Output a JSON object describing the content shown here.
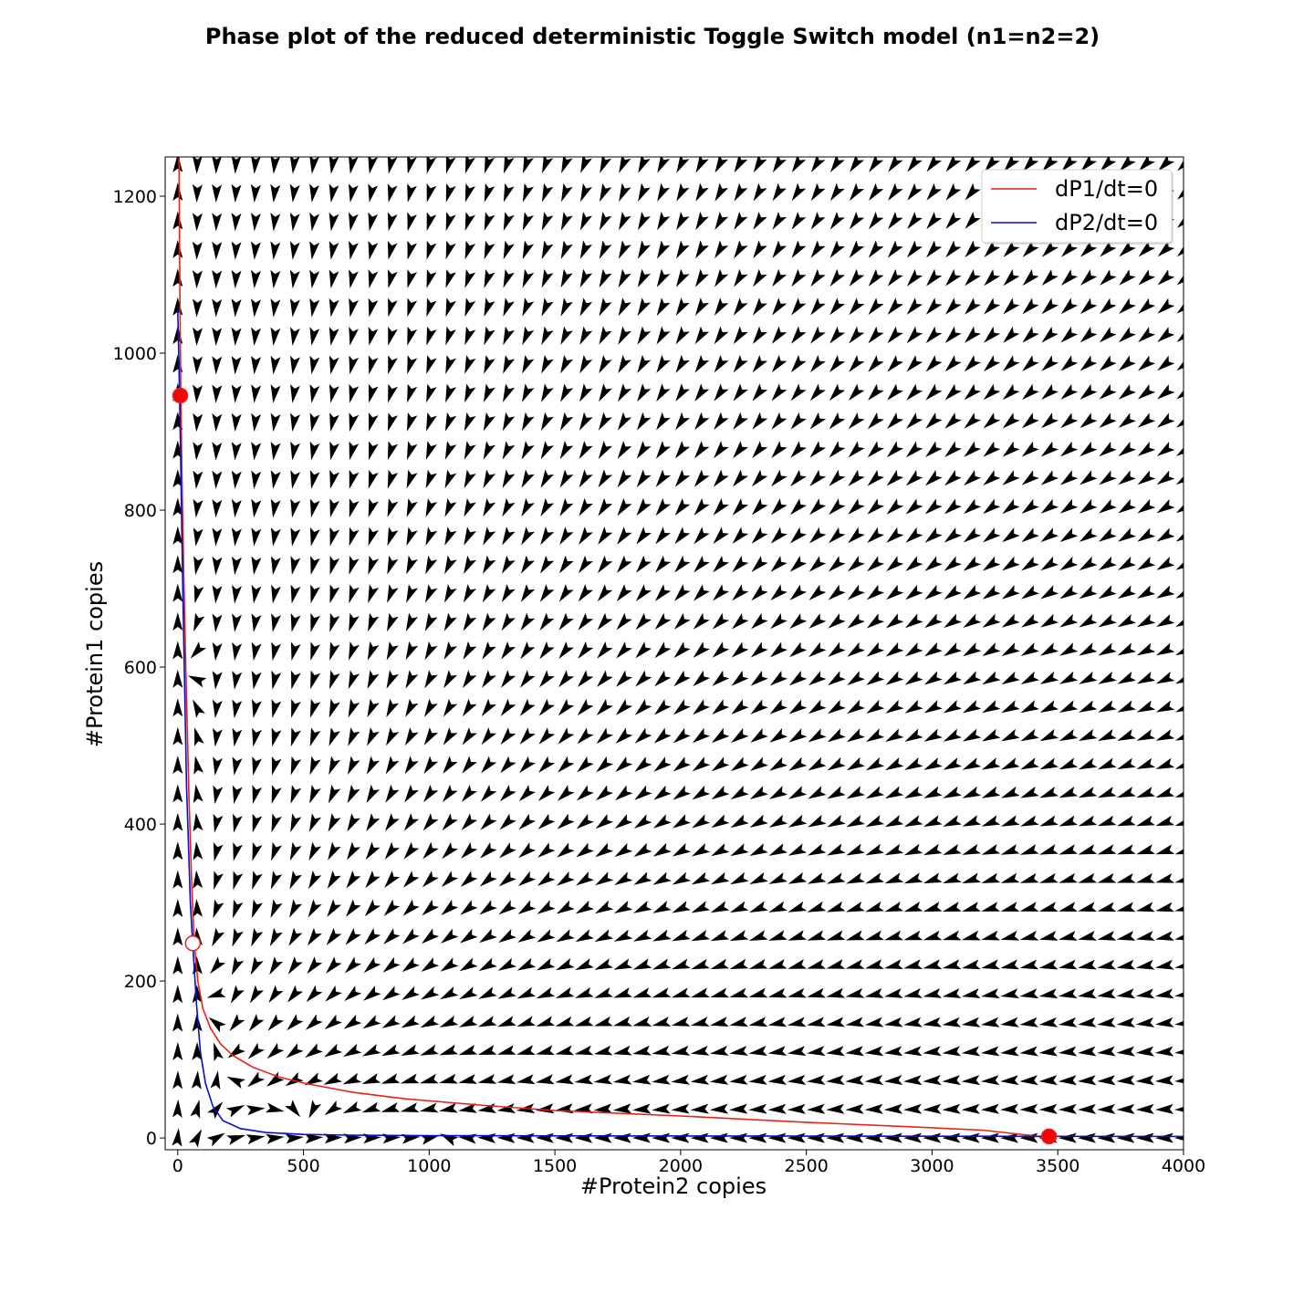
{
  "chart_data": {
    "type": "line",
    "title": "Phase plot of the reduced deterministic Toggle Switch model (n1=n2=2)",
    "xlabel": "#Protein2 copies",
    "ylabel": "#Protein1 copies",
    "xlim": [
      -50,
      4000
    ],
    "ylim": [
      -15,
      1250
    ],
    "xticks": [
      0,
      500,
      1000,
      1500,
      2000,
      2500,
      3000,
      3500,
      4000
    ],
    "yticks": [
      0,
      200,
      400,
      600,
      800,
      1000,
      1200
    ],
    "grid": false,
    "legend_position": "top-right",
    "series": [
      {
        "name": "dP1/dt=0",
        "color": "#e8211b",
        "x": [
          5,
          8,
          12,
          18,
          25,
          35,
          45,
          55,
          65,
          80,
          100,
          130,
          170,
          220,
          300,
          400,
          500,
          700,
          900,
          1200,
          1500,
          2000,
          2500,
          3000,
          3200,
          3400,
          3465
        ],
        "y": [
          1250,
          1100,
          950,
          820,
          700,
          560,
          430,
          330,
          250,
          200,
          165,
          140,
          120,
          105,
          90,
          78,
          70,
          58,
          50,
          42,
          35,
          28,
          20,
          13,
          10,
          3,
          0
        ]
      },
      {
        "name": "dP2/dt=0",
        "color": "#0c0ccc",
        "x": [
          0,
          2,
          5,
          10,
          20,
          35,
          50,
          60,
          75,
          90,
          110,
          140,
          180,
          250,
          350,
          500,
          700,
          1000,
          1500,
          2000,
          3000,
          4000
        ],
        "y": [
          1055,
          1030,
          980,
          900,
          700,
          450,
          300,
          245,
          170,
          110,
          70,
          40,
          22,
          12,
          7,
          4.5,
          3.5,
          3,
          2.7,
          2.5,
          2.2,
          2
        ]
      }
    ],
    "steady_states": [
      {
        "x": 10,
        "y": 946,
        "stable": true
      },
      {
        "x": 60,
        "y": 248,
        "stable": false
      },
      {
        "x": 3465,
        "y": 2,
        "stable": true
      }
    ],
    "vector_field": {
      "x_start": 0,
      "x_step": 77,
      "x_count": 53,
      "y_start": 0,
      "y_step": 36.5,
      "y_count": 35,
      "model": {
        "a1": 3470,
        "a2": 1055,
        "k1": 35,
        "k2": 35,
        "n1": 2,
        "n2": 2
      }
    }
  }
}
